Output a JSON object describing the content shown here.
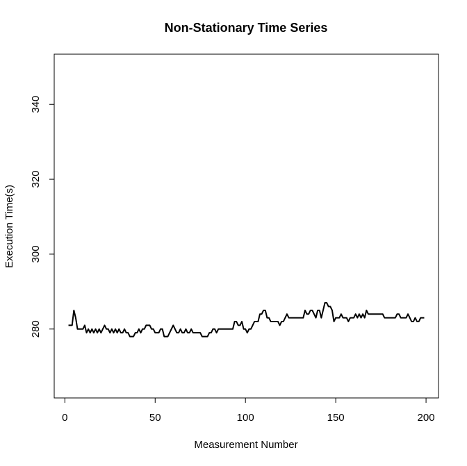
{
  "chart_data": {
    "type": "line",
    "title": "Non-Stationary Time Series",
    "x_label": "Measurement Number",
    "y_label": "Execution Time(s)",
    "x": [
      2,
      3,
      4,
      5,
      6,
      7,
      8,
      9,
      10,
      11,
      12,
      13,
      14,
      15,
      16,
      17,
      18,
      19,
      20,
      21,
      22,
      23,
      24,
      25,
      26,
      27,
      28,
      29,
      30,
      31,
      32,
      33,
      34,
      35,
      36,
      37,
      38,
      39,
      40,
      41,
      42,
      43,
      44,
      45,
      46,
      47,
      48,
      49,
      50,
      51,
      52,
      53,
      54,
      55,
      56,
      57,
      58,
      59,
      60,
      61,
      62,
      63,
      64,
      65,
      66,
      67,
      68,
      69,
      70,
      71,
      72,
      73,
      74,
      75,
      76,
      77,
      78,
      79,
      80,
      81,
      82,
      83,
      84,
      85,
      86,
      87,
      88,
      89,
      90,
      91,
      92,
      93,
      94,
      95,
      96,
      97,
      98,
      99,
      100,
      101,
      102,
      103,
      104,
      105,
      106,
      107,
      108,
      109,
      110,
      111,
      112,
      113,
      114,
      115,
      116,
      117,
      118,
      119,
      120,
      121,
      122,
      123,
      124,
      125,
      126,
      127,
      128,
      129,
      130,
      131,
      132,
      133,
      134,
      135,
      136,
      137,
      138,
      139,
      140,
      141,
      142,
      143,
      144,
      145,
      146,
      147,
      148,
      149,
      150,
      151,
      152,
      153,
      154,
      155,
      156,
      157,
      158,
      159,
      160,
      161,
      162,
      163,
      164,
      165,
      166,
      167,
      168,
      169,
      170,
      171,
      172,
      173,
      174,
      175,
      176,
      177,
      178,
      179,
      180,
      181,
      182,
      183,
      184,
      185,
      186,
      187,
      188,
      189,
      190,
      191,
      192,
      193,
      194,
      195,
      196,
      197,
      198,
      199
    ],
    "series": [
      {
        "name": "Execution Time",
        "color": "#000000",
        "values": [
          281,
          281,
          281,
          285,
          283,
          280,
          280,
          280,
          280,
          281,
          279,
          280,
          279,
          280,
          279,
          280,
          279,
          280,
          279,
          280,
          281,
          280,
          280,
          279,
          280,
          279,
          280,
          279,
          280,
          279,
          279,
          280,
          279,
          279,
          278,
          278,
          278,
          279,
          279,
          280,
          279,
          280,
          280,
          281,
          281,
          281,
          280,
          280,
          279,
          279,
          279,
          280,
          280,
          278,
          278,
          278,
          279,
          280,
          281,
          280,
          279,
          279,
          280,
          279,
          279,
          280,
          279,
          279,
          280,
          279,
          279,
          279,
          279,
          279,
          278,
          278,
          278,
          278,
          279,
          279,
          280,
          280,
          279,
          280,
          280,
          280,
          280,
          280,
          280,
          280,
          280,
          280,
          282,
          282,
          281,
          281,
          282,
          280,
          280,
          279,
          280,
          280,
          281,
          282,
          282,
          282,
          284,
          284,
          285,
          285,
          283,
          283,
          282,
          282,
          282,
          282,
          282,
          281,
          282,
          282,
          283,
          284,
          283,
          283,
          283,
          283,
          283,
          283,
          283,
          283,
          283,
          285,
          284,
          284,
          285,
          285,
          284,
          283,
          285,
          285,
          283,
          285,
          287,
          287,
          286,
          286,
          285,
          282,
          283,
          283,
          283,
          284,
          283,
          283,
          283,
          282,
          283,
          283,
          283,
          284,
          283,
          284,
          283,
          284,
          283,
          285,
          284,
          284,
          284,
          284,
          284,
          284,
          284,
          284,
          284,
          283,
          283,
          283,
          283,
          283,
          283,
          283,
          284,
          284,
          283,
          283,
          283,
          283,
          284,
          283,
          282,
          282,
          283,
          282,
          282,
          283,
          283,
          283
        ]
      }
    ],
    "xlim": [
      -5.9,
      206.9
    ],
    "ylim": [
      261.6,
      353.4
    ],
    "xticks": [
      0,
      50,
      100,
      150,
      200
    ],
    "yticks": [
      280,
      300,
      320,
      340
    ]
  }
}
